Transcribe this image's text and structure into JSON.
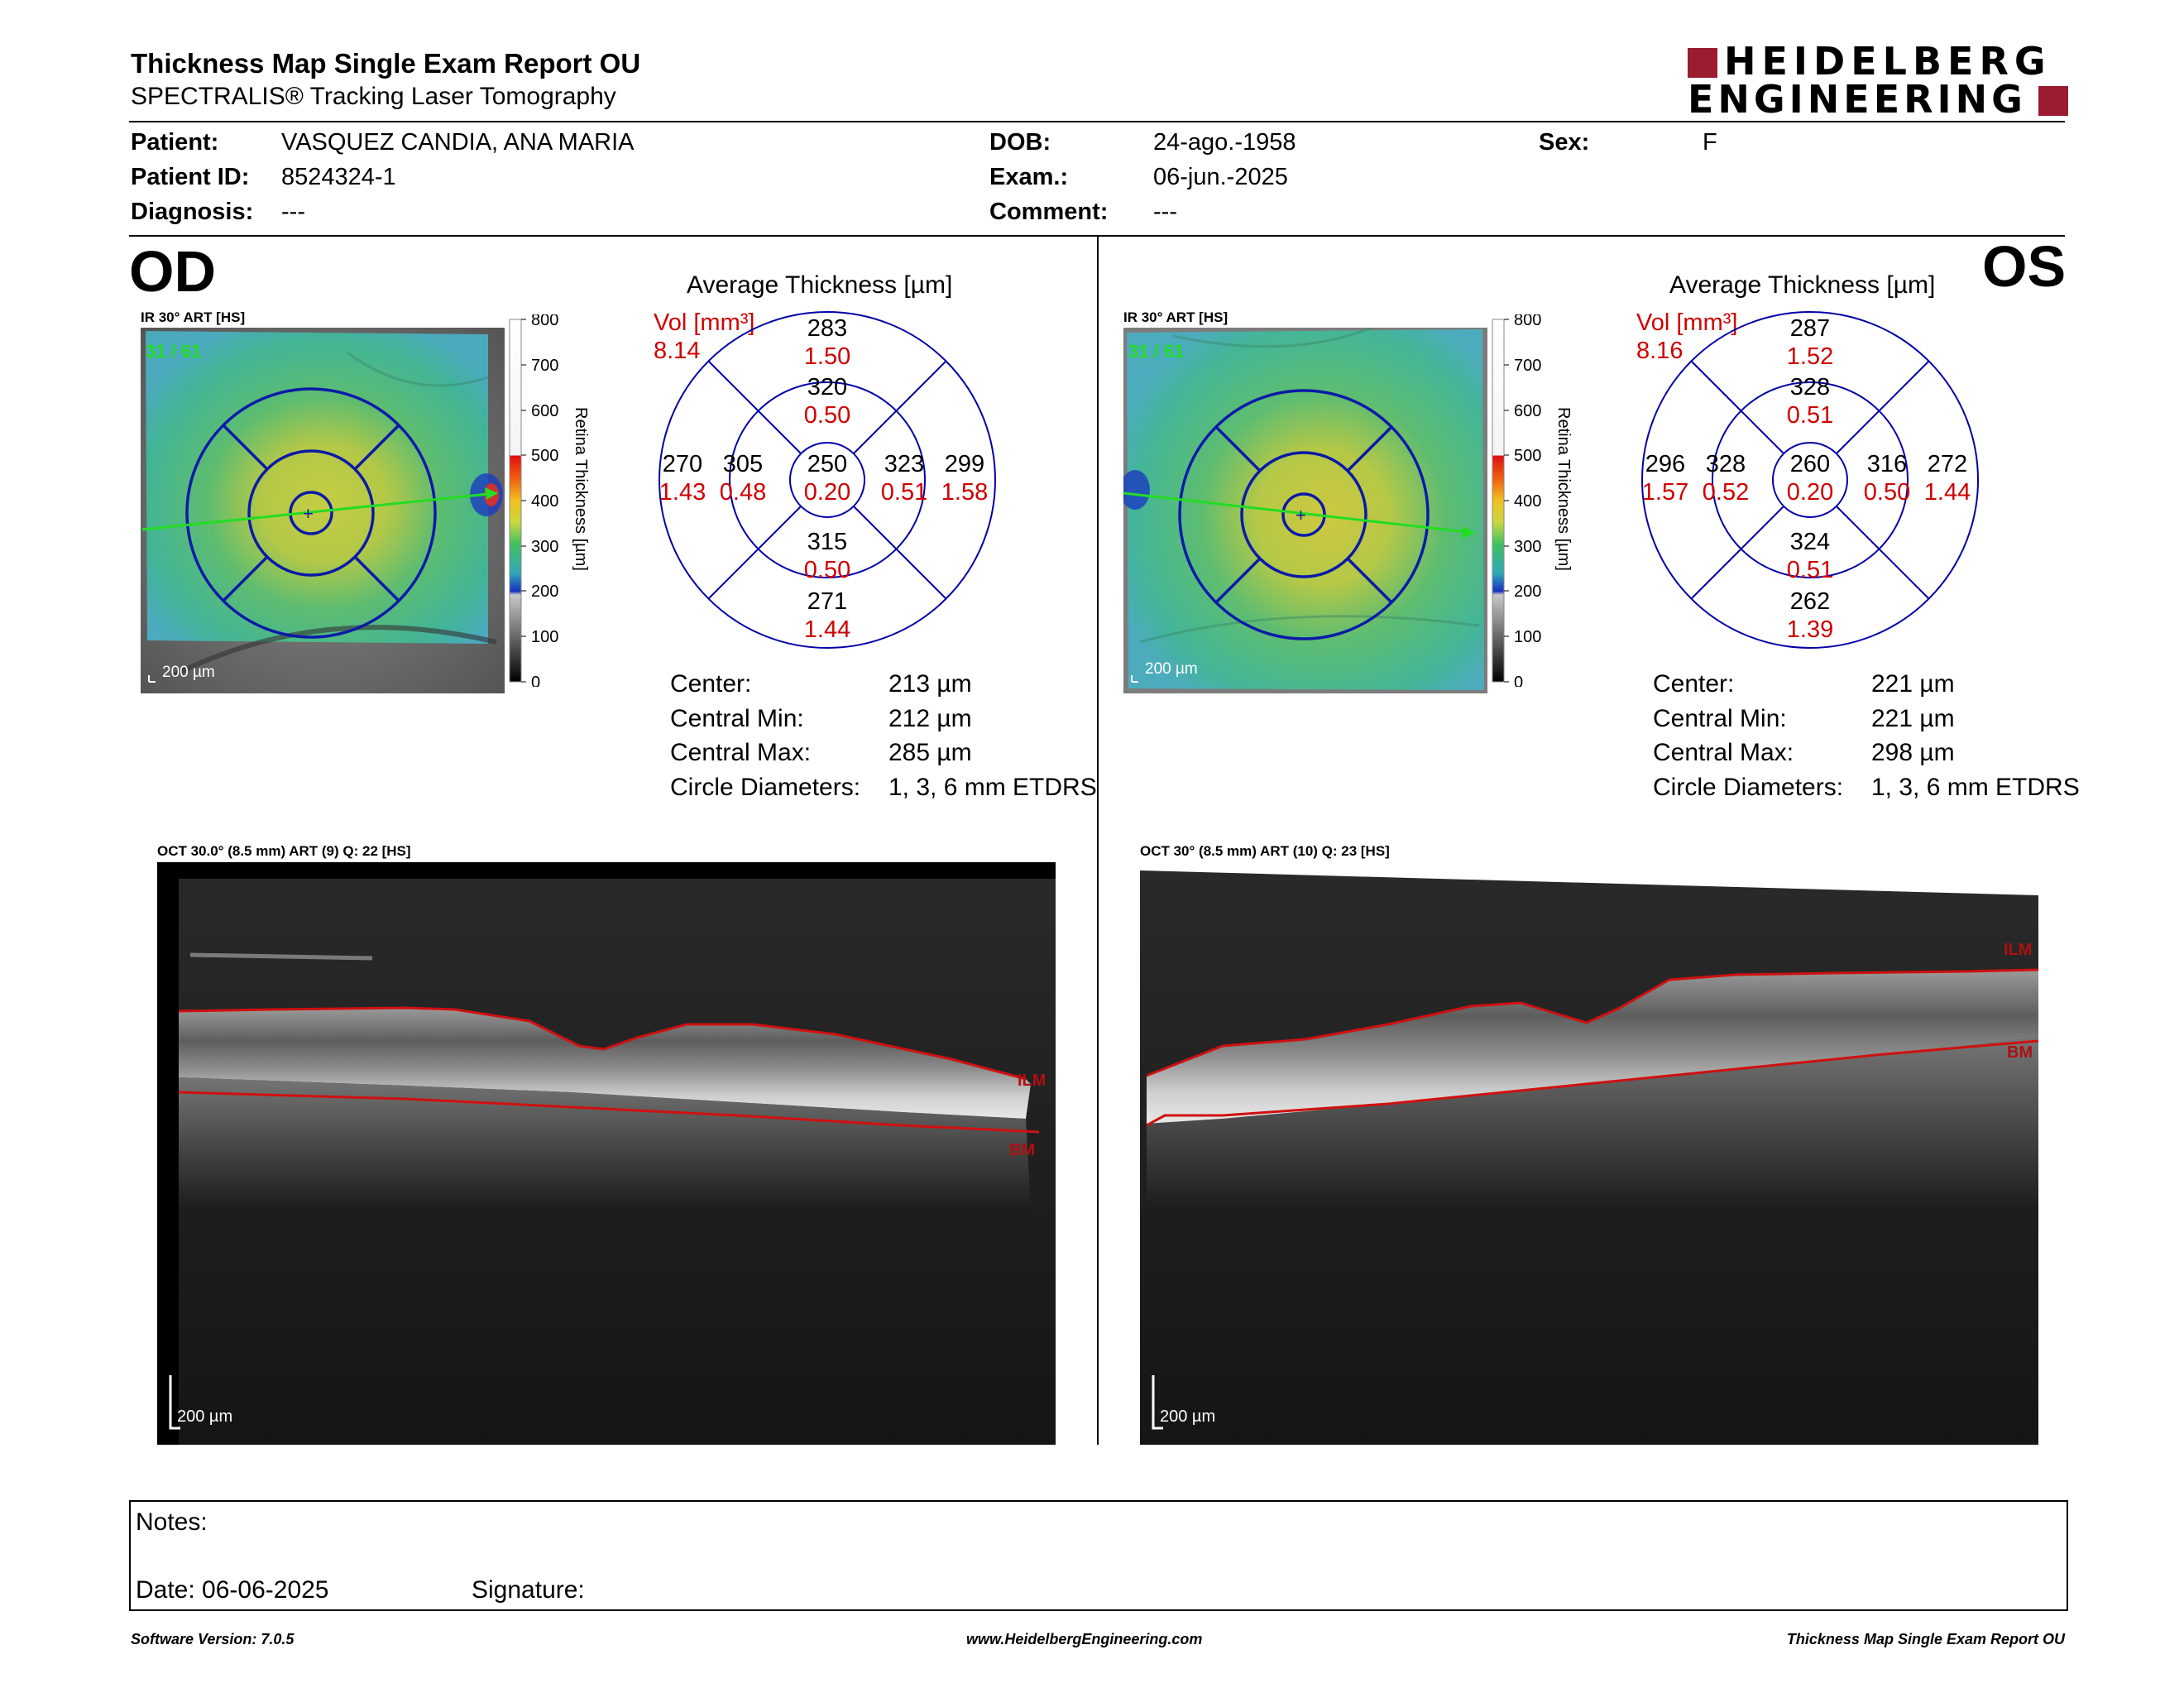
{
  "header": {
    "title": "Thickness Map Single Exam Report OU",
    "subtitle": "SPECTRALIS® Tracking Laser Tomography",
    "logo_line1": "HEIDELBERG",
    "logo_line2": "ENGINEERING",
    "logo_color": "#9b1b30"
  },
  "patient": {
    "patient_label": "Patient:",
    "patient_value": "VASQUEZ CANDIA, ANA MARIA",
    "id_label": "Patient ID:",
    "id_value": "8524324-1",
    "diagnosis_label": "Diagnosis:",
    "diagnosis_value": "---",
    "dob_label": "DOB:",
    "dob_value": "24-ago.-1958",
    "exam_label": "Exam.:",
    "exam_value": "06-jun.-2025",
    "comment_label": "Comment:",
    "comment_value": "---",
    "sex_label": "Sex:",
    "sex_value": "F"
  },
  "scale": {
    "ticks": [
      "800",
      "700",
      "600",
      "500",
      "400",
      "300",
      "200",
      "100",
      "0"
    ],
    "label": "Retina Thickness [µm]"
  },
  "od": {
    "eye": "OD",
    "fundus_title": "IR 30° ART [HS]",
    "frame": "31 / 61",
    "fundus_scalebar": "200 µm",
    "avg_title": "Average Thickness [µm]",
    "vol_label": "Vol [mm³]",
    "vol_value": "8.14",
    "sectors": {
      "center": {
        "t": "250",
        "v": "0.20"
      },
      "inner_sup": {
        "t": "320",
        "v": "0.50"
      },
      "inner_inf": {
        "t": "315",
        "v": "0.50"
      },
      "inner_left": {
        "t": "305",
        "v": "0.48"
      },
      "inner_right": {
        "t": "323",
        "v": "0.51"
      },
      "outer_sup": {
        "t": "283",
        "v": "1.50"
      },
      "outer_inf": {
        "t": "271",
        "v": "1.44"
      },
      "outer_left": {
        "t": "270",
        "v": "1.43"
      },
      "outer_right": {
        "t": "299",
        "v": "1.58"
      }
    },
    "stats": [
      {
        "label": "Center:",
        "value": "213 µm"
      },
      {
        "label": "Central Min:",
        "value": "212 µm"
      },
      {
        "label": "Central Max:",
        "value": "285 µm"
      },
      {
        "label": "Circle Diameters:",
        "value": "1, 3, 6 mm ETDRS"
      }
    ],
    "oct_title": "OCT 30.0° (8.5 mm) ART (9) Q: 22 [HS]",
    "oct_scalebar": "200 µm",
    "ilm_label": "ILM",
    "bm_label": "BM"
  },
  "os": {
    "eye": "OS",
    "fundus_title": "IR 30° ART [HS]",
    "frame": "31 / 61",
    "fundus_scalebar": "200 µm",
    "avg_title": "Average Thickness [µm]",
    "vol_label": "Vol [mm³]",
    "vol_value": "8.16",
    "sectors": {
      "center": {
        "t": "260",
        "v": "0.20"
      },
      "inner_sup": {
        "t": "328",
        "v": "0.51"
      },
      "inner_inf": {
        "t": "324",
        "v": "0.51"
      },
      "inner_left": {
        "t": "328",
        "v": "0.52"
      },
      "inner_right": {
        "t": "316",
        "v": "0.50"
      },
      "outer_sup": {
        "t": "287",
        "v": "1.52"
      },
      "outer_inf": {
        "t": "262",
        "v": "1.39"
      },
      "outer_left": {
        "t": "296",
        "v": "1.57"
      },
      "outer_right": {
        "t": "272",
        "v": "1.44"
      }
    },
    "stats": [
      {
        "label": "Center:",
        "value": "221 µm"
      },
      {
        "label": "Central Min:",
        "value": "221 µm"
      },
      {
        "label": "Central Max:",
        "value": "298 µm"
      },
      {
        "label": "Circle Diameters:",
        "value": "1, 3, 6 mm ETDRS"
      }
    ],
    "oct_title": "OCT 30° (8.5 mm) ART (10) Q: 23 [HS]",
    "oct_scalebar": "200 µm",
    "ilm_label": "ILM",
    "bm_label": "BM"
  },
  "notes": {
    "notes_label": "Notes:",
    "date_label": "Date: 06-06-2025",
    "signature_label": "Signature:"
  },
  "footer": {
    "software": "Software Version: 7.0.5",
    "website": "www.HeidelbergEngineering.com",
    "report": "Thickness Map Single Exam Report OU"
  },
  "colors": {
    "grid_blue": "#0000a8",
    "value_red": "#d00000",
    "scan_green": "#22dd22",
    "segment_red": "#d01010"
  }
}
